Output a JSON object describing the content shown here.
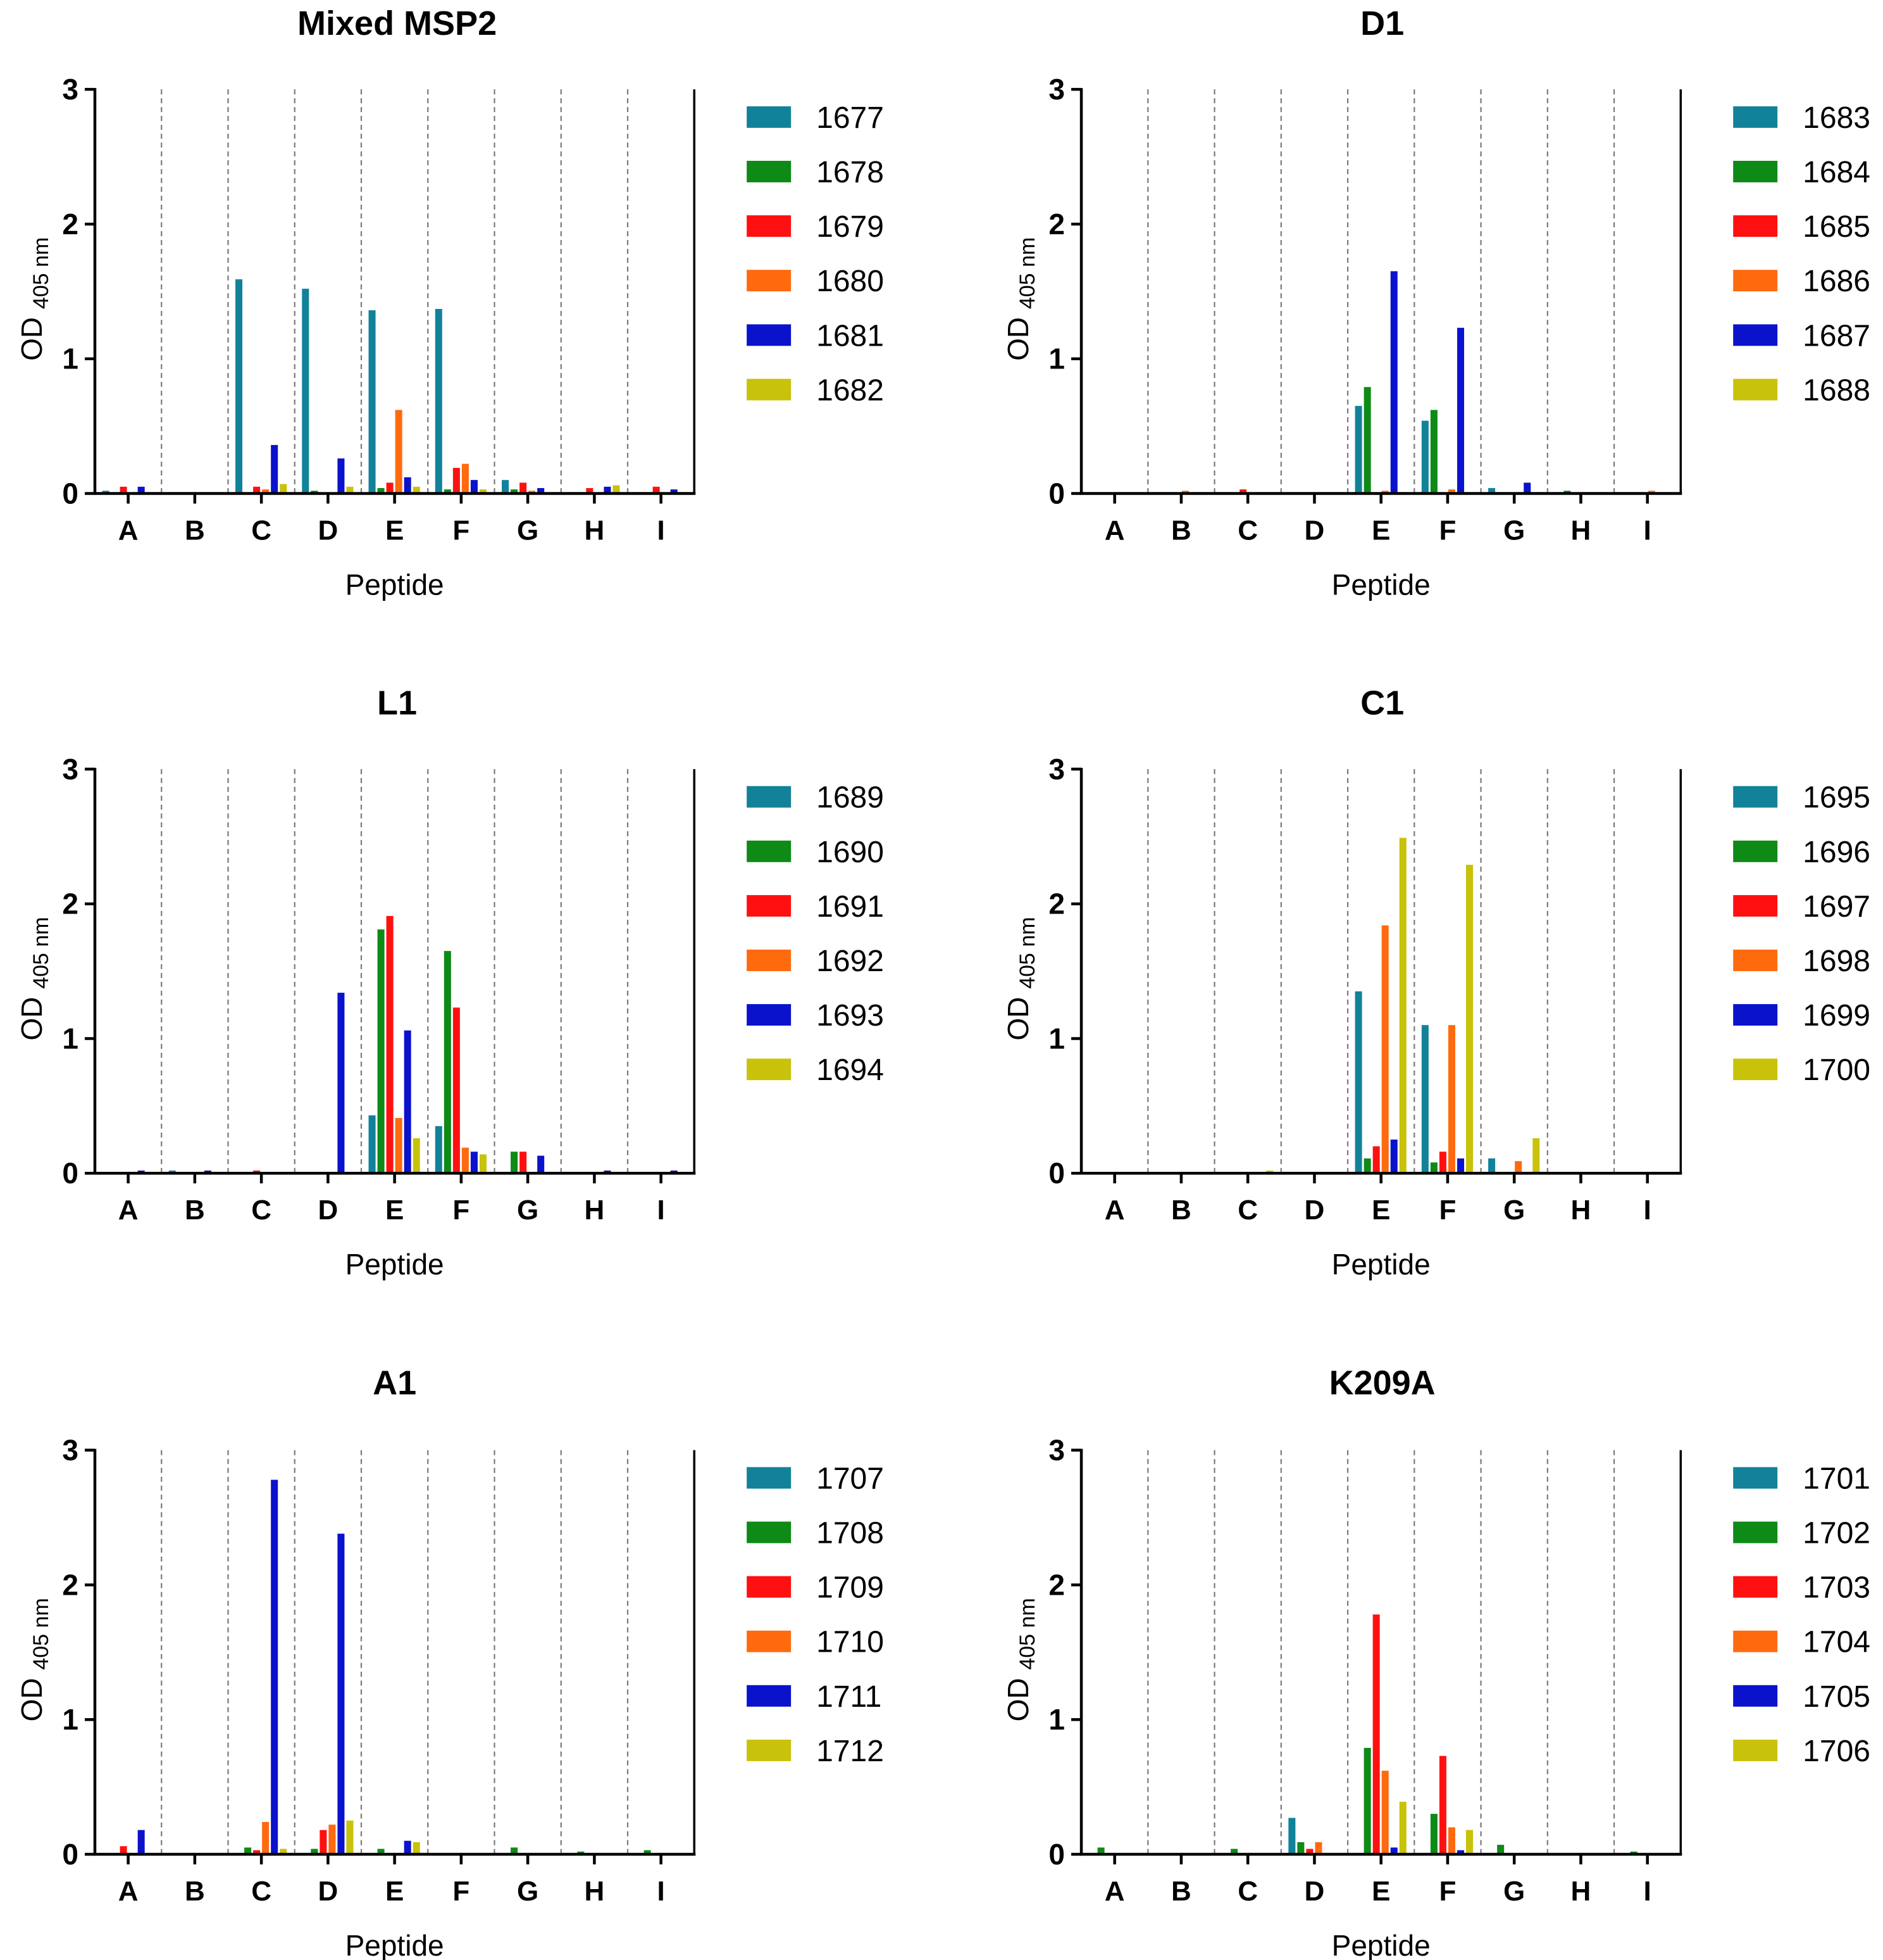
{
  "colors": [
    "#12829a",
    "#0e8a16",
    "#ff1010",
    "#ff6a0f",
    "#0b12cc",
    "#c8c20a"
  ],
  "chart_data": [
    {
      "type": "bar",
      "title": "Mixed MSP2",
      "xlabel": "Peptide",
      "ylabel_main": "OD",
      "ylabel_sub": "405 nm",
      "ylim": [
        0,
        3
      ],
      "yticks": [
        "0",
        "1",
        "2",
        "3"
      ],
      "categories": [
        "A",
        "B",
        "C",
        "D",
        "E",
        "F",
        "G",
        "H",
        "I"
      ],
      "legend_position": "right",
      "series": [
        {
          "name": "1677",
          "values": [
            0.02,
            0.0,
            1.59,
            1.52,
            1.36,
            1.37,
            0.1,
            0.0,
            0.0
          ]
        },
        {
          "name": "1678",
          "values": [
            0.0,
            0.0,
            0.0,
            0.02,
            0.04,
            0.03,
            0.03,
            0.0,
            0.0
          ]
        },
        {
          "name": "1679",
          "values": [
            0.05,
            0.0,
            0.05,
            0.0,
            0.08,
            0.19,
            0.08,
            0.04,
            0.05
          ]
        },
        {
          "name": "1680",
          "values": [
            0.0,
            0.0,
            0.03,
            0.0,
            0.62,
            0.22,
            0.02,
            0.0,
            0.0
          ]
        },
        {
          "name": "1681",
          "values": [
            0.05,
            0.0,
            0.36,
            0.26,
            0.12,
            0.1,
            0.04,
            0.05,
            0.03
          ]
        },
        {
          "name": "1682",
          "values": [
            0.0,
            0.0,
            0.07,
            0.05,
            0.05,
            0.03,
            0.0,
            0.06,
            0.0
          ]
        }
      ]
    },
    {
      "type": "bar",
      "title": "D1",
      "xlabel": "Peptide",
      "ylabel_main": "OD",
      "ylabel_sub": "405 nm",
      "ylim": [
        0,
        3
      ],
      "yticks": [
        "0",
        "1",
        "2",
        "3"
      ],
      "categories": [
        "A",
        "B",
        "C",
        "D",
        "E",
        "F",
        "G",
        "H",
        "I"
      ],
      "legend_position": "right",
      "series": [
        {
          "name": "1683",
          "values": [
            0.0,
            0.0,
            0.0,
            0.0,
            0.65,
            0.54,
            0.04,
            0.0,
            0.0
          ]
        },
        {
          "name": "1684",
          "values": [
            0.0,
            0.0,
            0.0,
            0.0,
            0.79,
            0.62,
            0.0,
            0.02,
            0.0
          ]
        },
        {
          "name": "1685",
          "values": [
            0.0,
            0.0,
            0.03,
            0.0,
            0.0,
            0.0,
            0.0,
            0.0,
            0.0
          ]
        },
        {
          "name": "1686",
          "values": [
            0.0,
            0.02,
            0.0,
            0.0,
            0.02,
            0.03,
            0.0,
            0.0,
            0.02
          ]
        },
        {
          "name": "1687",
          "values": [
            0.0,
            0.0,
            0.0,
            0.0,
            1.65,
            1.23,
            0.08,
            0.0,
            0.0
          ]
        },
        {
          "name": "1688",
          "values": [
            0.0,
            0.0,
            0.0,
            0.0,
            0.0,
            0.0,
            0.0,
            0.0,
            0.0
          ]
        }
      ]
    },
    {
      "type": "bar",
      "title": "L1",
      "xlabel": "Peptide",
      "ylabel_main": "OD",
      "ylabel_sub": "405 nm",
      "ylim": [
        0,
        3
      ],
      "yticks": [
        "0",
        "1",
        "2",
        "3"
      ],
      "categories": [
        "A",
        "B",
        "C",
        "D",
        "E",
        "F",
        "G",
        "H",
        "I"
      ],
      "legend_position": "right",
      "series": [
        {
          "name": "1689",
          "values": [
            0.0,
            0.02,
            0.0,
            0.0,
            0.43,
            0.35,
            0.0,
            0.0,
            0.0
          ]
        },
        {
          "name": "1690",
          "values": [
            0.0,
            0.0,
            0.0,
            0.0,
            1.81,
            1.65,
            0.16,
            0.0,
            0.0
          ]
        },
        {
          "name": "1691",
          "values": [
            0.0,
            0.0,
            0.02,
            0.0,
            1.91,
            1.23,
            0.16,
            0.0,
            0.0
          ]
        },
        {
          "name": "1692",
          "values": [
            0.0,
            0.0,
            0.0,
            0.0,
            0.41,
            0.19,
            0.0,
            0.0,
            0.0
          ]
        },
        {
          "name": "1693",
          "values": [
            0.02,
            0.02,
            0.0,
            1.34,
            1.06,
            0.16,
            0.13,
            0.02,
            0.02
          ]
        },
        {
          "name": "1694",
          "values": [
            0.0,
            0.0,
            0.0,
            0.0,
            0.26,
            0.14,
            0.0,
            0.0,
            0.0
          ]
        }
      ]
    },
    {
      "type": "bar",
      "title": "C1",
      "xlabel": "Peptide",
      "ylabel_main": "OD",
      "ylabel_sub": "405 nm",
      "ylim": [
        0,
        3
      ],
      "yticks": [
        "0",
        "1",
        "2",
        "3"
      ],
      "categories": [
        "A",
        "B",
        "C",
        "D",
        "E",
        "F",
        "G",
        "H",
        "I"
      ],
      "legend_position": "right",
      "series": [
        {
          "name": "1695",
          "values": [
            0.0,
            0.0,
            0.0,
            0.0,
            1.35,
            1.1,
            0.11,
            0.0,
            0.0
          ]
        },
        {
          "name": "1696",
          "values": [
            0.0,
            0.0,
            0.0,
            0.0,
            0.11,
            0.08,
            0.0,
            0.0,
            0.0
          ]
        },
        {
          "name": "1697",
          "values": [
            0.0,
            0.0,
            0.0,
            0.0,
            0.2,
            0.16,
            0.0,
            0.0,
            0.0
          ]
        },
        {
          "name": "1698",
          "values": [
            0.0,
            0.0,
            0.0,
            0.0,
            1.84,
            1.1,
            0.09,
            0.0,
            0.0
          ]
        },
        {
          "name": "1699",
          "values": [
            0.0,
            0.0,
            0.0,
            0.0,
            0.25,
            0.11,
            0.0,
            0.0,
            0.0
          ]
        },
        {
          "name": "1700",
          "values": [
            0.0,
            0.0,
            0.02,
            0.0,
            2.49,
            2.29,
            0.26,
            0.0,
            0.0
          ]
        }
      ]
    },
    {
      "type": "bar",
      "title": "A1",
      "xlabel": "Peptide",
      "ylabel_main": "OD",
      "ylabel_sub": "405 nm",
      "ylim": [
        0,
        3
      ],
      "yticks": [
        "0",
        "1",
        "2",
        "3"
      ],
      "categories": [
        "A",
        "B",
        "C",
        "D",
        "E",
        "F",
        "G",
        "H",
        "I"
      ],
      "legend_position": "right",
      "series": [
        {
          "name": "1707",
          "values": [
            0.0,
            0.0,
            0.0,
            0.0,
            0.0,
            0.0,
            0.0,
            0.0,
            0.0
          ]
        },
        {
          "name": "1708",
          "values": [
            0.0,
            0.0,
            0.05,
            0.04,
            0.04,
            0.0,
            0.05,
            0.02,
            0.03
          ]
        },
        {
          "name": "1709",
          "values": [
            0.06,
            0.0,
            0.03,
            0.18,
            0.0,
            0.0,
            0.0,
            0.0,
            0.0
          ]
        },
        {
          "name": "1710",
          "values": [
            0.0,
            0.0,
            0.24,
            0.22,
            0.0,
            0.0,
            0.0,
            0.0,
            0.0
          ]
        },
        {
          "name": "1711",
          "values": [
            0.18,
            0.0,
            2.78,
            2.38,
            0.1,
            0.0,
            0.0,
            0.0,
            0.0
          ]
        },
        {
          "name": "1712",
          "values": [
            0.0,
            0.0,
            0.04,
            0.25,
            0.09,
            0.0,
            0.0,
            0.0,
            0.0
          ]
        }
      ]
    },
    {
      "type": "bar",
      "title": "K209A",
      "xlabel": "Peptide",
      "ylabel_main": "OD",
      "ylabel_sub": "405 nm",
      "ylim": [
        0,
        3
      ],
      "yticks": [
        "0",
        "1",
        "2",
        "3"
      ],
      "categories": [
        "A",
        "B",
        "C",
        "D",
        "E",
        "F",
        "G",
        "H",
        "I"
      ],
      "legend_position": "right",
      "series": [
        {
          "name": "1701",
          "values": [
            0.0,
            0.0,
            0.0,
            0.27,
            0.0,
            0.0,
            0.0,
            0.0,
            0.0
          ]
        },
        {
          "name": "1702",
          "values": [
            0.05,
            0.0,
            0.04,
            0.09,
            0.79,
            0.3,
            0.07,
            0.0,
            0.02
          ]
        },
        {
          "name": "1703",
          "values": [
            0.0,
            0.0,
            0.0,
            0.04,
            1.78,
            0.73,
            0.0,
            0.0,
            0.0
          ]
        },
        {
          "name": "1704",
          "values": [
            0.0,
            0.0,
            0.0,
            0.09,
            0.62,
            0.2,
            0.0,
            0.0,
            0.0
          ]
        },
        {
          "name": "1705",
          "values": [
            0.0,
            0.0,
            0.0,
            0.0,
            0.05,
            0.03,
            0.0,
            0.0,
            0.0
          ]
        },
        {
          "name": "1706",
          "values": [
            0.0,
            0.0,
            0.0,
            0.0,
            0.39,
            0.18,
            0.0,
            0.0,
            0.0
          ]
        }
      ]
    }
  ]
}
